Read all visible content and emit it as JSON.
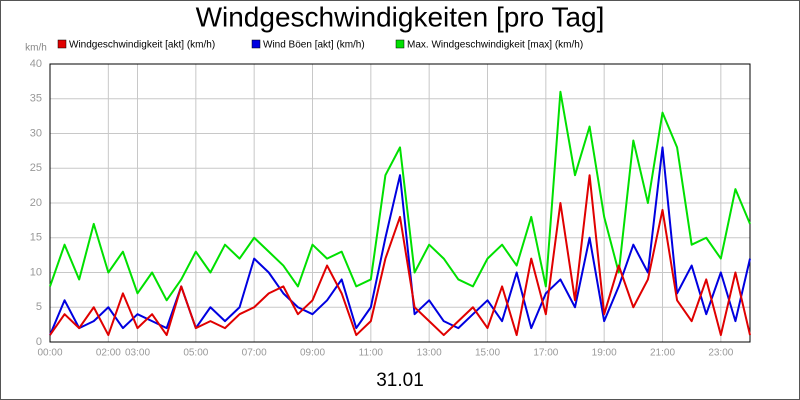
{
  "chart_data": {
    "type": "line",
    "title": "Windgeschwindigkeiten [pro Tag]",
    "y_label": "km/h",
    "x_label": "31.01",
    "x": [
      0,
      0.5,
      1,
      1.5,
      2,
      2.5,
      3,
      3.5,
      4,
      4.5,
      5,
      5.5,
      6,
      6.5,
      7,
      7.5,
      8,
      8.5,
      9,
      9.5,
      10,
      10.5,
      11,
      11.5,
      12,
      12.5,
      13,
      13.5,
      14,
      14.5,
      15,
      15.5,
      16,
      16.5,
      17,
      17.5,
      18,
      18.5,
      19,
      19.5,
      20,
      20.5,
      21,
      21.5,
      22,
      22.5,
      23,
      23.5,
      24
    ],
    "xlim": [
      0,
      24
    ],
    "xticks": [
      {
        "value": 0,
        "label": "00:00"
      },
      {
        "value": 2,
        "label": "02:00"
      },
      {
        "value": 3,
        "label": "03:00"
      },
      {
        "value": 5,
        "label": "05:00"
      },
      {
        "value": 7,
        "label": "07:00"
      },
      {
        "value": 9,
        "label": "09:00"
      },
      {
        "value": 11,
        "label": "11:00"
      },
      {
        "value": 13,
        "label": "13:00"
      },
      {
        "value": 15,
        "label": "15:00"
      },
      {
        "value": 17,
        "label": "17:00"
      },
      {
        "value": 19,
        "label": "19:00"
      },
      {
        "value": 21,
        "label": "21:00"
      },
      {
        "value": 23,
        "label": "23:00"
      }
    ],
    "ylim": [
      0,
      40
    ],
    "yticks": [
      0,
      5,
      10,
      15,
      20,
      25,
      30,
      35,
      40
    ],
    "grid": true,
    "series": [
      {
        "name": "Windgeschwindigkeit [akt] (km/h)",
        "color": "#e00000",
        "values": [
          1,
          4,
          2,
          5,
          1,
          7,
          2,
          4,
          1,
          8,
          2,
          3,
          2,
          4,
          5,
          7,
          8,
          4,
          6,
          11,
          7,
          1,
          3,
          12,
          18,
          5,
          3,
          1,
          3,
          5,
          2,
          8,
          1,
          12,
          4,
          20,
          6,
          24,
          4,
          11,
          5,
          9,
          19,
          6,
          3,
          9,
          1,
          10,
          1
        ]
      },
      {
        "name": "Wind Böen [akt] (km/h)",
        "color": "#0000e0",
        "values": [
          1,
          6,
          2,
          3,
          5,
          2,
          4,
          3,
          2,
          8,
          2,
          5,
          3,
          5,
          12,
          10,
          7,
          5,
          4,
          6,
          9,
          2,
          5,
          15,
          24,
          4,
          6,
          3,
          2,
          4,
          6,
          3,
          10,
          2,
          7,
          9,
          5,
          15,
          3,
          8,
          14,
          10,
          28,
          7,
          11,
          4,
          10,
          3,
          12
        ]
      },
      {
        "name": "Max. Windgeschwindigkeit [max] (km/h)",
        "color": "#00e000",
        "values": [
          8,
          14,
          9,
          17,
          10,
          13,
          7,
          10,
          6,
          9,
          13,
          10,
          14,
          12,
          15,
          13,
          11,
          8,
          14,
          12,
          13,
          8,
          9,
          24,
          28,
          10,
          14,
          12,
          9,
          8,
          12,
          14,
          11,
          18,
          8,
          36,
          24,
          31,
          18,
          10,
          29,
          20,
          33,
          28,
          14,
          15,
          12,
          22,
          17
        ]
      }
    ]
  }
}
